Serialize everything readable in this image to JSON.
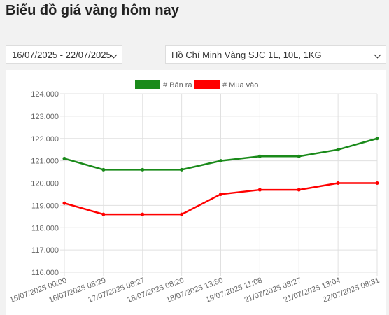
{
  "header": {
    "title": "Biểu đồ giá vàng hôm nay"
  },
  "filters": {
    "date_range": "16/07/2025 - 22/07/2025",
    "location": "Hồ Chí Minh Vàng SJC 1L, 10L, 1KG"
  },
  "chart_data": {
    "type": "line",
    "categories": [
      "16/07/2025 00:00",
      "16/07/2025 08:29",
      "17/07/2025 08:27",
      "18/07/2025 08:20",
      "18/07/2025 13:50",
      "19/07/2025 11:08",
      "21/07/2025 08:27",
      "21/07/2025 13:04",
      "22/07/2025 08:31"
    ],
    "series": [
      {
        "name": "# Bán ra",
        "color": "#1a8a1a",
        "values": [
          121100,
          120600,
          120600,
          120600,
          121000,
          121200,
          121200,
          121500,
          122000
        ]
      },
      {
        "name": "# Mua vào",
        "color": "#ff0000",
        "values": [
          119100,
          118600,
          118600,
          118600,
          119500,
          119700,
          119700,
          120000,
          120000
        ]
      }
    ],
    "ylim": [
      116000,
      124000
    ],
    "yticks": [
      {
        "value": 116000,
        "label": "116.000"
      },
      {
        "value": 117000,
        "label": "117.000"
      },
      {
        "value": 118000,
        "label": "118.000"
      },
      {
        "value": 119000,
        "label": "119.000"
      },
      {
        "value": 120000,
        "label": "120.000"
      },
      {
        "value": 121000,
        "label": "121.000"
      },
      {
        "value": 122000,
        "label": "122.000"
      },
      {
        "value": 123000,
        "label": "123.000"
      },
      {
        "value": 124000,
        "label": "124.000"
      }
    ],
    "grid": true,
    "legend": "top"
  }
}
